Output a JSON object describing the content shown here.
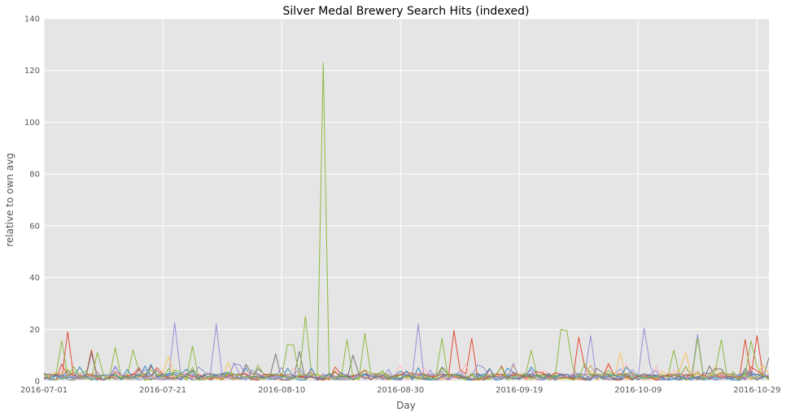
{
  "chart_data": {
    "type": "line",
    "title": "Silver Medal Brewery Search Hits (indexed)",
    "xlabel": "Day",
    "ylabel": "relative to own avg",
    "x_start": "2016-07-01",
    "x_end": "2016-10-31",
    "xlim": [
      "2016-07-01",
      "2016-10-31"
    ],
    "ylim": [
      0,
      140
    ],
    "x_ticks": [
      "2016-07-01",
      "2016-07-21",
      "2016-08-10",
      "2016-08-30",
      "2016-09-19",
      "2016-10-09",
      "2016-10-29"
    ],
    "y_ticks": [
      0,
      20,
      40,
      60,
      80,
      100,
      120,
      140
    ],
    "grid": true,
    "legend": "none",
    "series_count": 12,
    "colors": [
      "#E24A33",
      "#348ABD",
      "#988ED5",
      "#777777",
      "#FBC15E",
      "#8EBA42",
      "#FFB5B8",
      "#E24A33",
      "#348ABD",
      "#988ED5",
      "#777777",
      "#8EBA42"
    ],
    "peaks": [
      {
        "series": 5,
        "date": "2016-08-17",
        "value": 123
      },
      {
        "series": 5,
        "date": "2016-08-14",
        "value": 25
      },
      {
        "series": 5,
        "date": "2016-08-11",
        "value": 14
      },
      {
        "series": 5,
        "date": "2016-08-12",
        "value": 14
      },
      {
        "series": 5,
        "date": "2016-08-21",
        "value": 16
      },
      {
        "series": 5,
        "date": "2016-08-24",
        "value": 18.5
      },
      {
        "series": 5,
        "date": "2016-07-04",
        "value": 15.5
      },
      {
        "series": 5,
        "date": "2016-07-10",
        "value": 11
      },
      {
        "series": 5,
        "date": "2016-07-13",
        "value": 13
      },
      {
        "series": 5,
        "date": "2016-07-16",
        "value": 12
      },
      {
        "series": 5,
        "date": "2016-07-26",
        "value": 13.5
      },
      {
        "series": 5,
        "date": "2016-09-06",
        "value": 16.5
      },
      {
        "series": 5,
        "date": "2016-09-21",
        "value": 12
      },
      {
        "series": 5,
        "date": "2016-09-26",
        "value": 20
      },
      {
        "series": 5,
        "date": "2016-09-27",
        "value": 19.5
      },
      {
        "series": 5,
        "date": "2016-10-15",
        "value": 12
      },
      {
        "series": 5,
        "date": "2016-10-19",
        "value": 16.5
      },
      {
        "series": 5,
        "date": "2016-10-23",
        "value": 16
      },
      {
        "series": 5,
        "date": "2016-10-28",
        "value": 15.5
      },
      {
        "series": 0,
        "date": "2016-07-05",
        "value": 19
      },
      {
        "series": 0,
        "date": "2016-07-09",
        "value": 12
      },
      {
        "series": 0,
        "date": "2016-09-08",
        "value": 19.5
      },
      {
        "series": 0,
        "date": "2016-09-11",
        "value": 16.5
      },
      {
        "series": 0,
        "date": "2016-09-29",
        "value": 17
      },
      {
        "series": 0,
        "date": "2016-10-27",
        "value": 16
      },
      {
        "series": 0,
        "date": "2016-10-29",
        "value": 17.5
      },
      {
        "series": 2,
        "date": "2016-07-23",
        "value": 22.5
      },
      {
        "series": 2,
        "date": "2016-07-30",
        "value": 22
      },
      {
        "series": 2,
        "date": "2016-09-02",
        "value": 22
      },
      {
        "series": 2,
        "date": "2016-10-01",
        "value": 17.5
      },
      {
        "series": 2,
        "date": "2016-10-10",
        "value": 20.5
      },
      {
        "series": 2,
        "date": "2016-10-19",
        "value": 18
      },
      {
        "series": 3,
        "date": "2016-08-09",
        "value": 10.5
      },
      {
        "series": 3,
        "date": "2016-08-13",
        "value": 11.5
      },
      {
        "series": 3,
        "date": "2016-08-22",
        "value": 10
      },
      {
        "series": 3,
        "date": "2016-10-31",
        "value": 9
      },
      {
        "series": 3,
        "date": "2016-07-09",
        "value": 11
      },
      {
        "series": 4,
        "date": "2016-07-22",
        "value": 9.5
      },
      {
        "series": 4,
        "date": "2016-10-06",
        "value": 11
      },
      {
        "series": 4,
        "date": "2016-10-17",
        "value": 11
      }
    ]
  }
}
